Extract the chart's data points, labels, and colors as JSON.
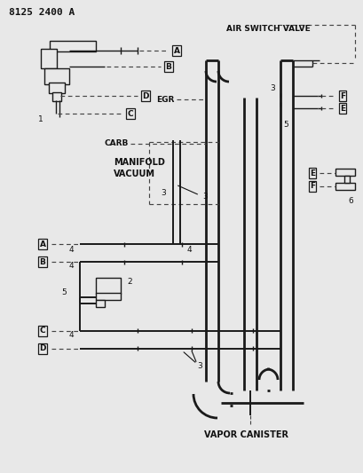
{
  "title": "8125 2400 A",
  "bg_color": "#e8e8e8",
  "line_color": "#1a1a1a",
  "text_color": "#111111",
  "dash_color": "#444444",
  "labels": {
    "air_switch_valve": "AIR SWITCH VALVE",
    "egr": "EGR",
    "carb": "CARB",
    "manifold_vacuum": "MANIFOLD\nVACUUM",
    "vapor_canister": "VAPOR CANISTER"
  },
  "font": "DejaVu Sans"
}
